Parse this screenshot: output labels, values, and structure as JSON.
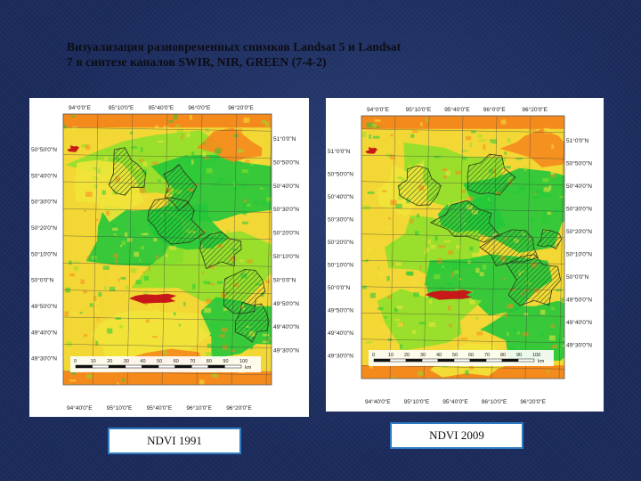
{
  "slide": {
    "title_line1": "Визуализация разновременных снимков Landsat 5 и Landsat",
    "title_line2": "7 в синтезе каналов SWIR, NIR, GREEN (7-4-2)"
  },
  "maps": [
    {
      "id": "map-1991",
      "caption": "NDVI 1991",
      "top_labels": [
        "94°0'0\"E",
        "95°10'0\"E",
        "95°40'0\"E",
        "96°0'0\"E",
        "96°20'0\"E"
      ],
      "bottom_labels": [
        "94°40'0\"E",
        "95°10'0\"E",
        "95°40'0\"E",
        "96°10'0\"E",
        "96°20'0\"E"
      ],
      "left_labels": [
        "50°50'0\"N",
        "50°40'0\"N",
        "50°30'0\"N",
        "50°20'0\"N",
        "50°10'0\"N",
        "50°0'0\"N",
        "49°50'0\"N",
        "49°40'0\"N",
        "49°30'0\"N"
      ],
      "right_labels": [
        "51°0'0\"N",
        "50°50'0\"N",
        "50°40'0\"N",
        "50°30'0\"N",
        "50°20'0\"N",
        "50°10'0\"N",
        "50°0'0\"N",
        "49°50'0\"N",
        "49°40'0\"N",
        "49°30'0\"N"
      ],
      "scale_labels": [
        "0",
        "10",
        "20",
        "30",
        "40",
        "50",
        "60",
        "70",
        "80",
        "90",
        "100"
      ],
      "scale_unit": "km"
    },
    {
      "id": "map-2009",
      "caption": "NDVI 2009",
      "top_labels": [
        "94°0'0\"E",
        "95°10'0\"E",
        "95°40'0\"E",
        "96°0'0\"E",
        "96°20'0\"E"
      ],
      "bottom_labels": [
        "94°40'0\"E",
        "95°10'0\"E",
        "95°40'0\"E",
        "96°10'0\"E",
        "96°20'0\"E"
      ],
      "left_labels": [
        "51°0'0\"N",
        "50°50'0\"N",
        "50°40'0\"N",
        "50°30'0\"N",
        "50°20'0\"N",
        "50°10'0\"N",
        "50°0'0\"N",
        "49°50'0\"N",
        "49°40'0\"N",
        "49°30'0\"N"
      ],
      "right_labels": [
        "51°0'0\"N",
        "50°50'0\"N",
        "50°40'0\"N",
        "50°30'0\"N",
        "50°20'0\"N",
        "50°10'0\"N",
        "50°0'0\"N",
        "49°50'0\"N",
        "49°40'0\"N",
        "49°30'0\"N"
      ],
      "scale_labels": [
        "0",
        "10",
        "20",
        "30",
        "40",
        "50",
        "60",
        "70",
        "80",
        "90",
        "100"
      ],
      "scale_unit": "km"
    }
  ],
  "colors": {
    "vegetation_high": "#22c83a",
    "vegetation_mid": "#8fe02a",
    "vegetation_low": "#f2e43a",
    "bare_soil": "#f58a1c",
    "water": "#c81818",
    "caption_border": "#2f7bc2"
  }
}
